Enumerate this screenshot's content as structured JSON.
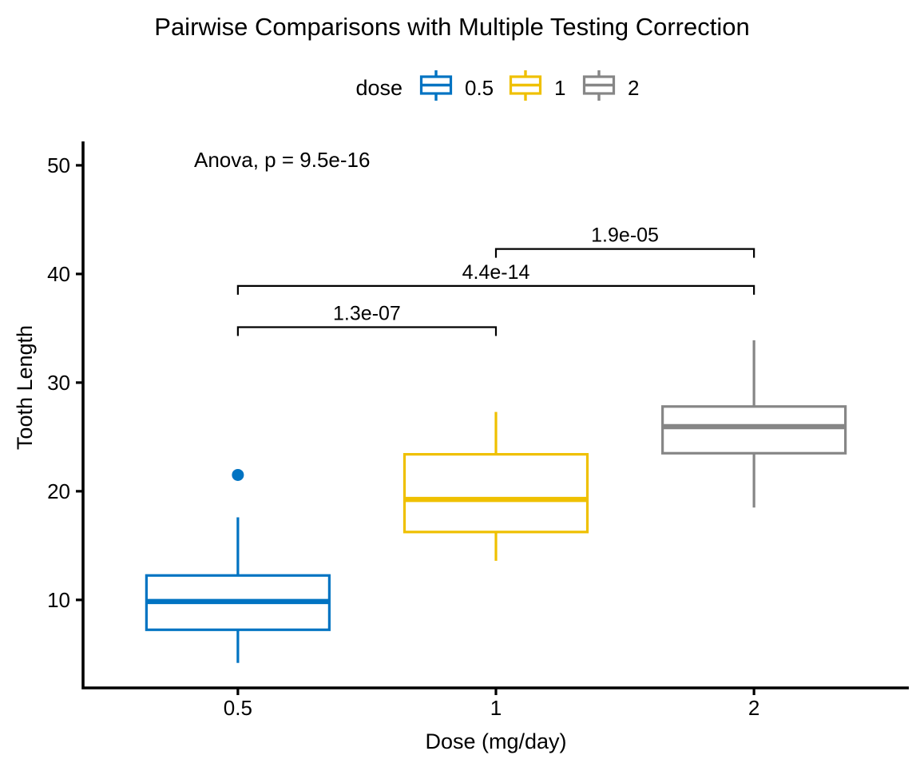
{
  "chart_data": {
    "type": "boxplot",
    "title": "Pairwise Comparisons with Multiple Testing Correction",
    "xlabel": "Dose (mg/day)",
    "ylabel": "Tooth Length",
    "annotation": "Anova, p = 9.5e-16",
    "grid": false,
    "legend": {
      "title": "dose",
      "position": "top",
      "entries": [
        {
          "label": "0.5",
          "color": "#0073C2"
        },
        {
          "label": "1",
          "color": "#EFC000"
        },
        {
          "label": "2",
          "color": "#868686"
        }
      ]
    },
    "x_categories": [
      "0.5",
      "1",
      "2"
    ],
    "y_ticks": [
      10,
      20,
      30,
      40,
      50
    ],
    "ylim": [
      1.9,
      52.2
    ],
    "axis_color": "#000000",
    "background_color": "#ffffff",
    "series": [
      {
        "category": "0.5",
        "color": "#0073C2",
        "whisker_low": 4.2,
        "q1": 7.25,
        "median": 9.85,
        "q3": 12.25,
        "whisker_high": 17.6,
        "outliers": [
          21.5
        ]
      },
      {
        "category": "1",
        "color": "#EFC000",
        "whisker_low": 13.6,
        "q1": 16.25,
        "median": 19.25,
        "q3": 23.4,
        "whisker_high": 27.3,
        "outliers": []
      },
      {
        "category": "2",
        "color": "#868686",
        "whisker_low": 18.5,
        "q1": 23.5,
        "median": 25.95,
        "q3": 27.8,
        "whisker_high": 33.9,
        "outliers": []
      }
    ],
    "comparisons": [
      {
        "group1": "0.5",
        "group2": "1",
        "p_label": "1.3e-07",
        "bracket_y": 35.1
      },
      {
        "group1": "0.5",
        "group2": "2",
        "p_label": "4.4e-14",
        "bracket_y": 38.9
      },
      {
        "group1": "1",
        "group2": "2",
        "p_label": "1.9e-05",
        "bracket_y": 42.3
      }
    ]
  }
}
